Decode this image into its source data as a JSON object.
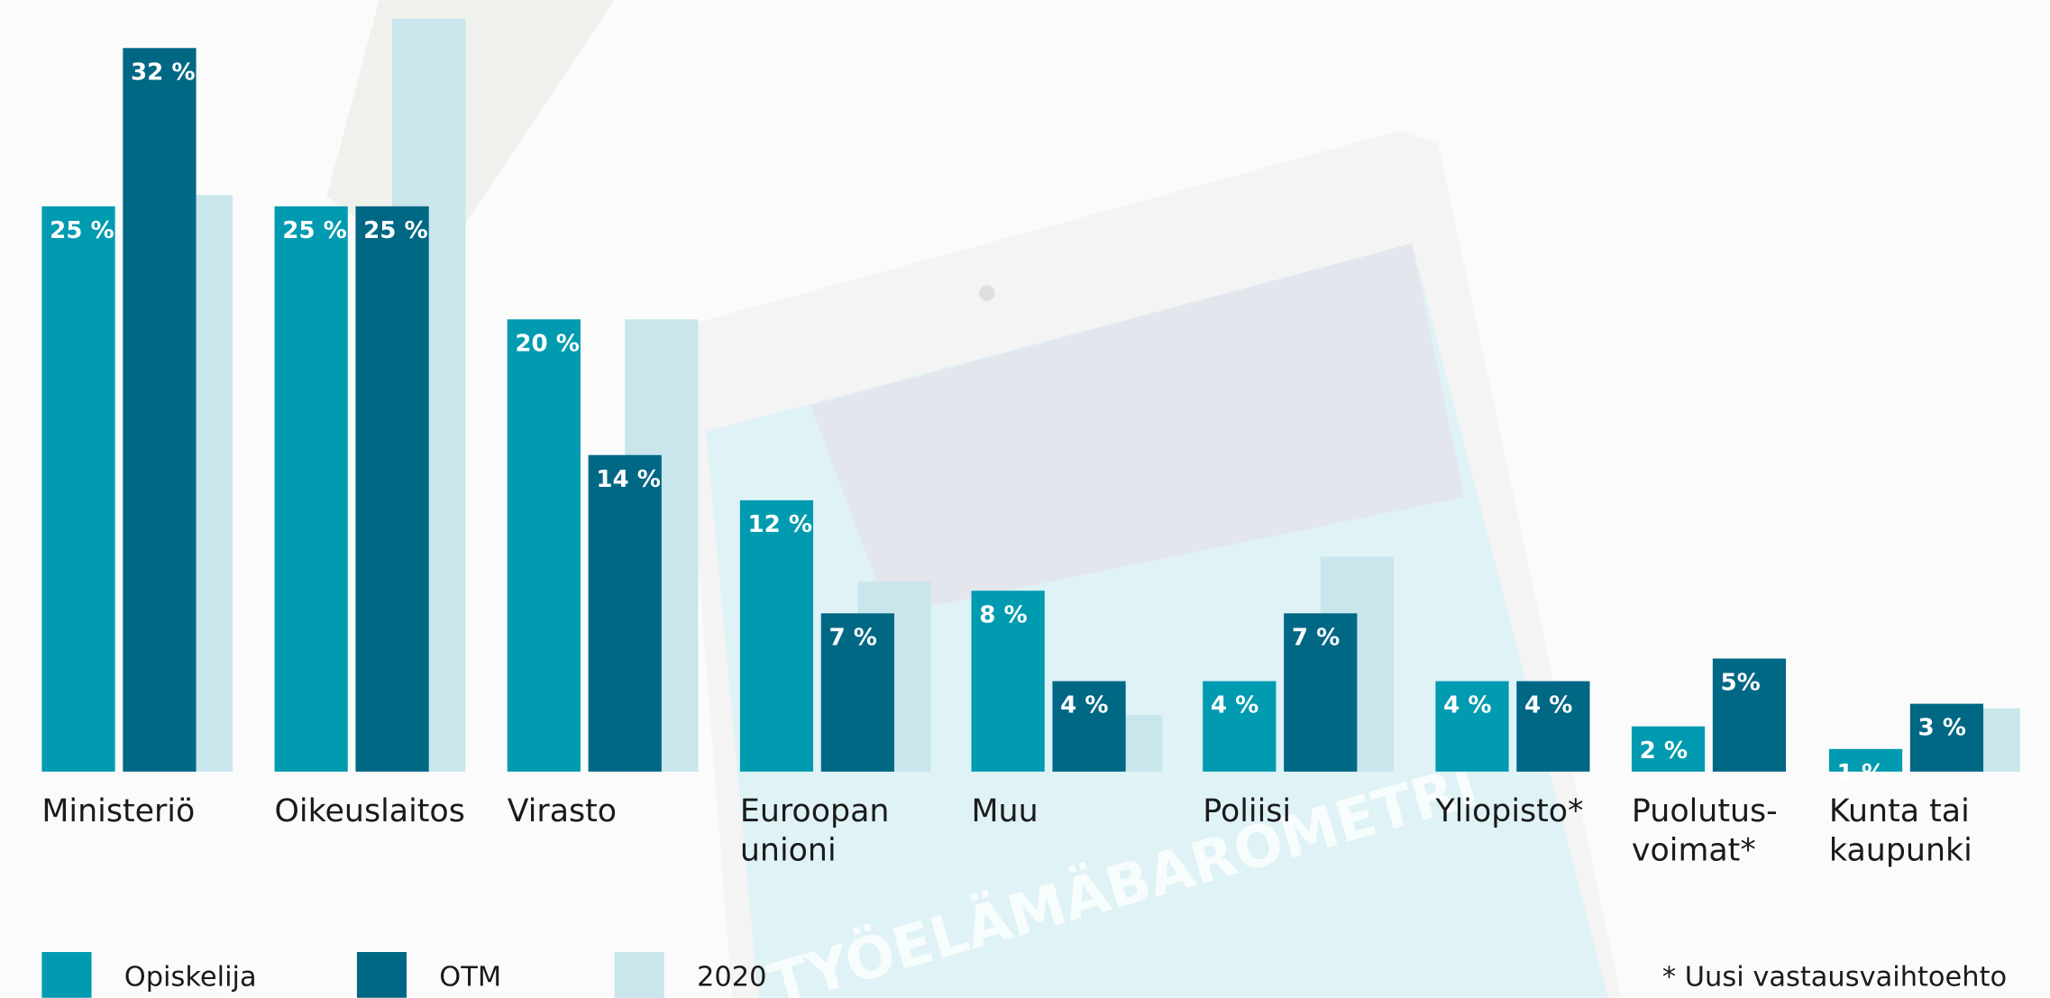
{
  "chart_data": {
    "type": "bar",
    "categories": [
      [
        "Ministeriö"
      ],
      [
        "Oikeuslaitos"
      ],
      [
        "Virasto"
      ],
      [
        "Euroopan",
        "unioni"
      ],
      [
        "Muu"
      ],
      [
        "Poliisi"
      ],
      [
        "Yliopisto*"
      ],
      [
        "Puolutus-",
        "voimat*"
      ],
      [
        "Kunta tai",
        "kaupunki"
      ]
    ],
    "series": [
      {
        "name": "Opiskelija",
        "color": "#009bb0",
        "values": [
          25,
          25,
          20,
          12,
          8,
          4,
          4,
          2,
          1
        ],
        "value_labels": [
          "25 %",
          "25 %",
          "20 %",
          "12 %",
          "8 %",
          "4 %",
          "4 %",
          "2 %",
          "1 %"
        ]
      },
      {
        "name": "OTM",
        "color": "#006785",
        "values": [
          32,
          25,
          14,
          7,
          4,
          7,
          4,
          5,
          3
        ],
        "value_labels": [
          "32 %",
          "25 %",
          "14 %",
          "7 %",
          "4 %",
          "7 %",
          "4 %",
          "5%",
          "3 %"
        ]
      },
      {
        "name": "2020",
        "color": "#c8e6ec",
        "values": [
          25.5,
          33.3,
          20,
          8.4,
          2.5,
          9.5,
          null,
          null,
          2.8
        ]
      }
    ],
    "ylim": [
      0,
      34
    ],
    "footnote": "* Uusi vastausvaihtoehto",
    "watermark": "TYÖELÄMÄBAROMETRI"
  }
}
